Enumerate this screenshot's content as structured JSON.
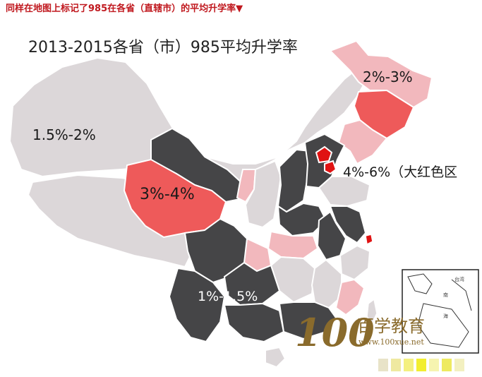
{
  "header": {
    "text": "同样在地图上标记了985在各省（直辖市）的平均升学率▼"
  },
  "map": {
    "title": "2013-2015各省（市）985平均升学率",
    "legend_colors": {
      "gray_light": "#dcd7d9",
      "pink_light": "#f2b8bd",
      "salmon": "#ee5a5a",
      "red": "#e01212",
      "dark": "#454547",
      "border": "#ffffff"
    },
    "region_labels": {
      "west": "1.5%-2%",
      "qinghai": "3%-4%",
      "northeast": "2%-3%",
      "beijing_tianjin": "4%-6%（大红色区",
      "southwest": "1%-1.5%"
    },
    "inset_labels": {
      "n": "南",
      "hai": "海",
      "tw": "台湾"
    },
    "logo": {
      "number": "100",
      "cn": "百学教育",
      "url": "www.100xue.net"
    }
  }
}
